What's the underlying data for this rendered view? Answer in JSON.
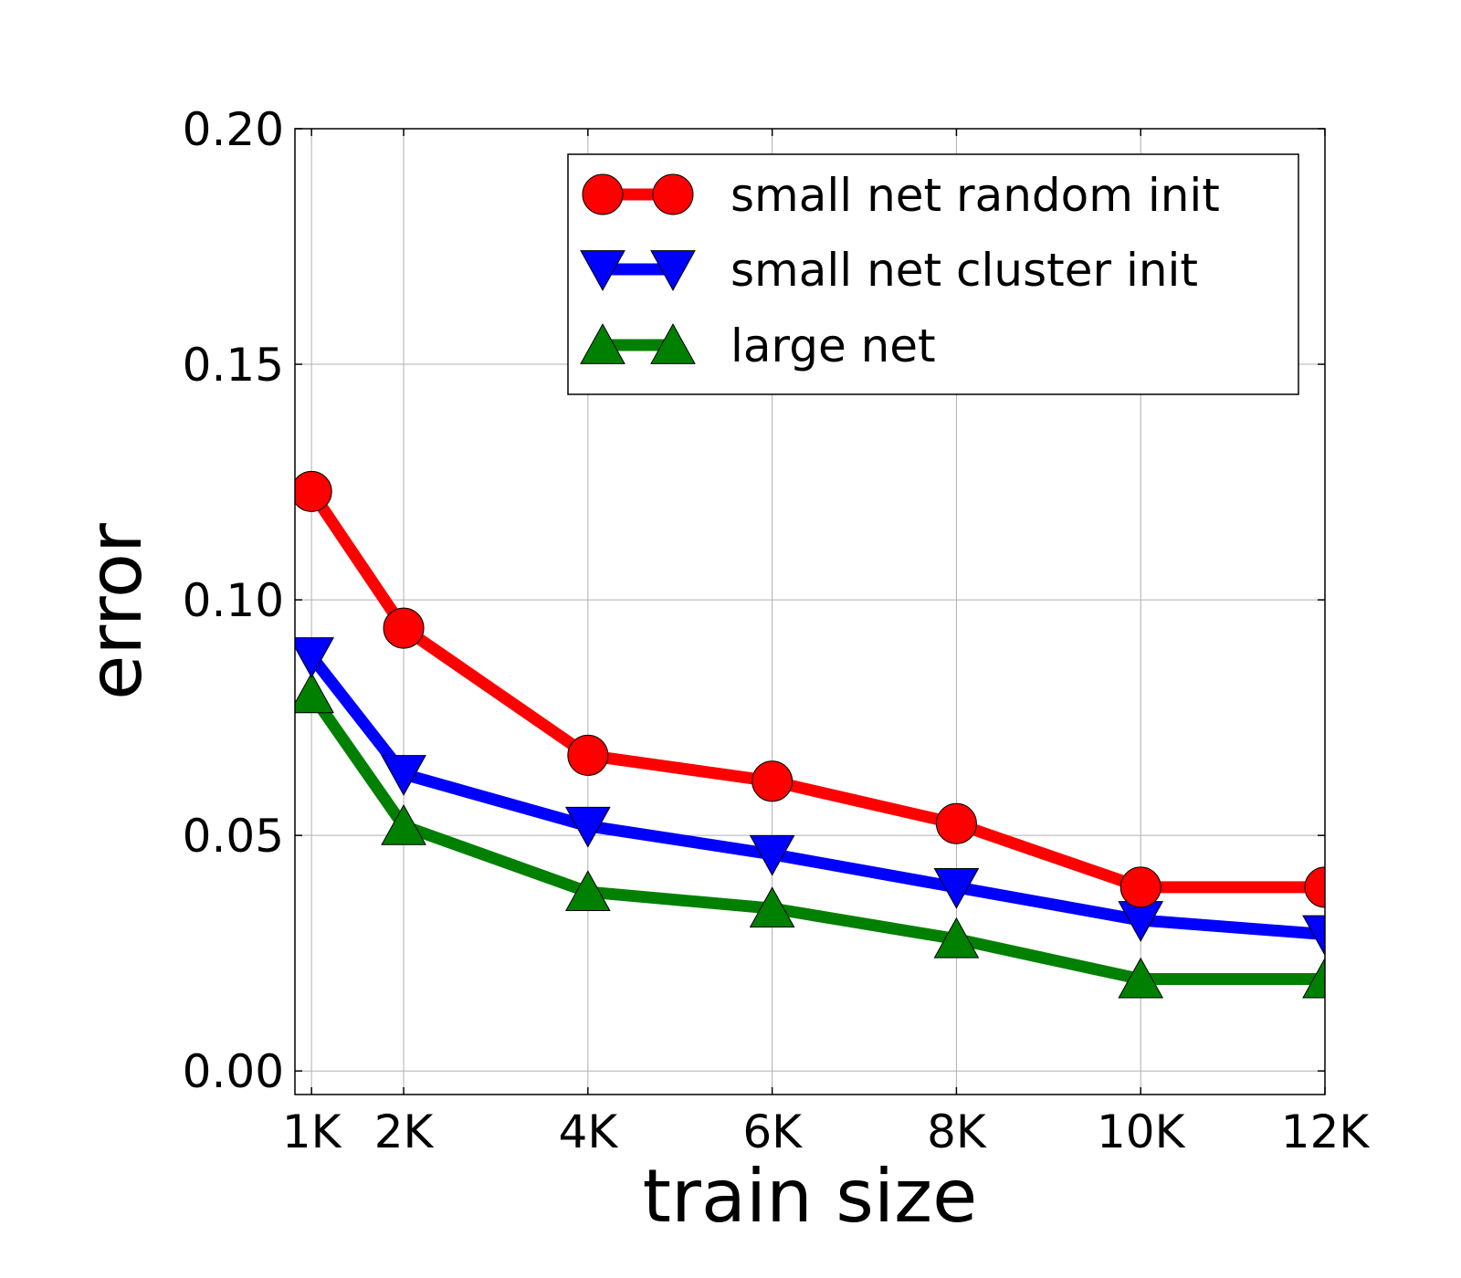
{
  "chart_data": {
    "type": "line",
    "title": "",
    "xlabel": "train size",
    "ylabel": "error",
    "x": [
      1,
      2,
      4,
      6,
      8,
      10,
      12
    ],
    "xtick_values": [
      1,
      2,
      4,
      6,
      8,
      10,
      12
    ],
    "xtick_labels": [
      "1K",
      "2K",
      "4K",
      "6K",
      "8K",
      "10K",
      "12K"
    ],
    "xlim": [
      0.82,
      12
    ],
    "ylim": [
      -0.005,
      0.2
    ],
    "ytick_values": [
      0.0,
      0.05,
      0.1,
      0.15,
      0.2
    ],
    "ytick_labels": [
      "0.00",
      "0.05",
      "0.10",
      "0.15",
      "0.20"
    ],
    "grid": true,
    "legend_position": "top-right",
    "series": [
      {
        "name": "small net random init",
        "color": "#ff0000",
        "marker": "circle",
        "values": [
          0.123,
          0.094,
          0.067,
          0.0615,
          0.0525,
          0.039,
          0.039
        ]
      },
      {
        "name": "small net cluster init",
        "color": "#0000ff",
        "marker": "triangle-down",
        "values": [
          0.088,
          0.063,
          0.052,
          0.046,
          0.039,
          0.032,
          0.029
        ]
      },
      {
        "name": "large net",
        "color": "#008000",
        "marker": "triangle-up",
        "values": [
          0.08,
          0.052,
          0.038,
          0.0345,
          0.028,
          0.0195,
          0.0195
        ]
      }
    ]
  }
}
